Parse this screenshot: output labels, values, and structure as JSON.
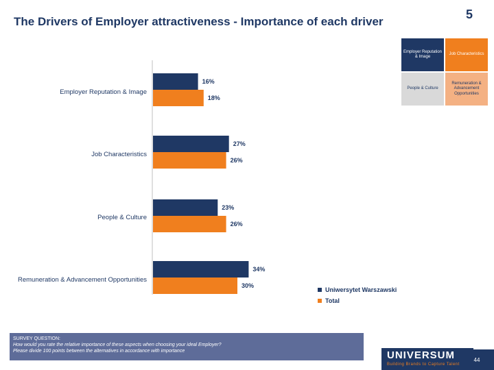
{
  "header": {
    "title": "The Drivers of Employer attractiveness - Importance of each driver",
    "badge": "5"
  },
  "driver_grid": {
    "cells": [
      {
        "label": "Employer Reputation & Image"
      },
      {
        "label": "Job Characteristics"
      },
      {
        "label": "People & Culture"
      },
      {
        "label": "Remuneration & Advancement Opportunities"
      }
    ]
  },
  "chart_data": {
    "type": "bar",
    "orientation": "horizontal",
    "categories": [
      "Employer Reputation & Image",
      "Job Characteristics",
      "People & Culture",
      "Remuneration & Advancement Opportunities"
    ],
    "series": [
      {
        "name": "Uniwersytet Warszawski",
        "values": [
          16,
          27,
          23,
          34
        ],
        "labels": [
          "16%",
          "27%",
          "23%",
          "34%"
        ],
        "color": "#1f3864"
      },
      {
        "name": "Total",
        "values": [
          18,
          26,
          26,
          30
        ],
        "labels": [
          "18%",
          "26%",
          "26%",
          "30%"
        ],
        "color": "#f07f1e"
      }
    ],
    "xlim": [
      0,
      100
    ],
    "legend_position": "bottom-right",
    "grid": false
  },
  "survey": {
    "heading": "SURVEY QUESTION:",
    "line1": "How would you rate the relative importance of these aspects when choosing your ideal Employer?",
    "line2": "Please divide 100 points between the alternatives in accordance with importance"
  },
  "footer": {
    "brand": "UNIVERSUM",
    "tagline": "Building Brands to Capture Talent",
    "page": "44"
  }
}
